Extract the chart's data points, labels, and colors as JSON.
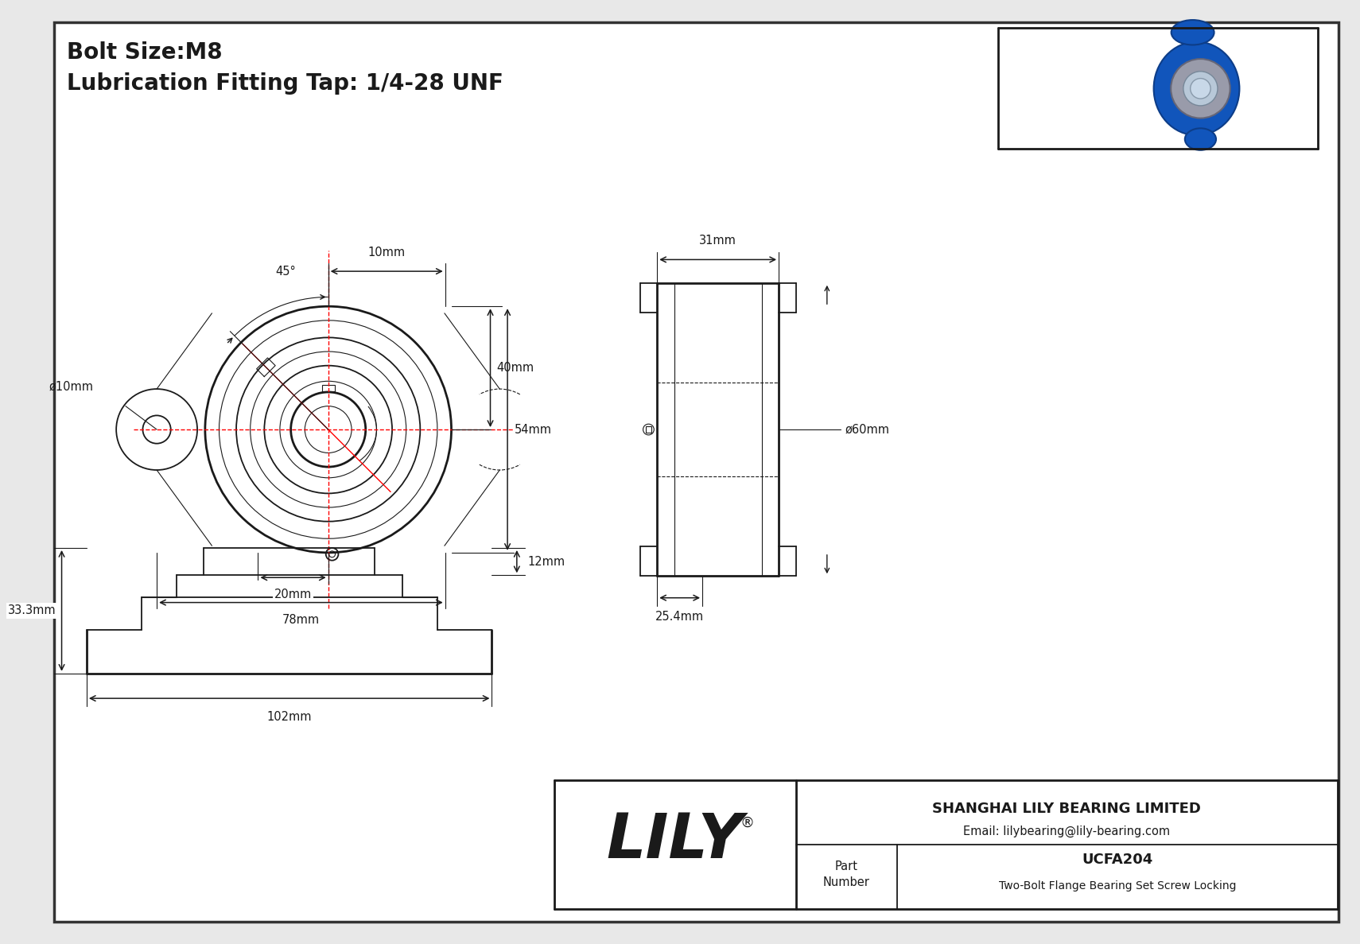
{
  "bg_color": "#e8e8e8",
  "drawing_bg": "#ffffff",
  "line_color": "#1a1a1a",
  "red_color": "#ff0000",
  "title_line1": "Bolt Size:M8",
  "title_line2": "Lubrication Fitting Tap: 1/4-28 UNF",
  "company": "SHANGHAI LILY BEARING LIMITED",
  "email": "Email: lilybearing@lily-bearing.com",
  "part_number_label": "Part\nNumber",
  "part_number": "UCFA204",
  "part_desc": "Two-Bolt Flange Bearing Set Screw Locking",
  "lily_text": "LILY",
  "dims": {
    "front_bolt_hole_dia": "ø10mm",
    "angle": "45°",
    "top_dim": "10mm",
    "right_dim1": "40mm",
    "right_dim2": "54mm",
    "bottom_dim1": "20mm",
    "bottom_dim2": "78mm",
    "side_top": "31mm",
    "side_right": "ø60mm",
    "side_bot": "25.4mm",
    "bot_left": "33.3mm",
    "bot_top": "12mm",
    "bot_bottom": "102mm"
  }
}
